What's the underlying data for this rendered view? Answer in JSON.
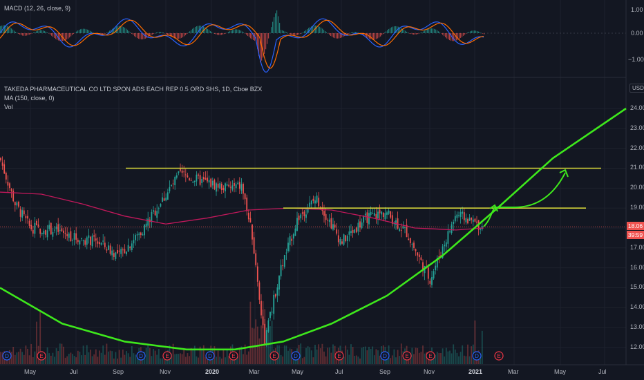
{
  "macd_pane": {
    "title": "MACD (12, 26, close, 9)",
    "ticks": [
      "1.00",
      "0.00",
      "−1.00"
    ]
  },
  "main_pane": {
    "symbol_title": "TAKEDA PHARMACEUTICAL CO LTD SPON ADS EACH REP 0.5 ORD SHS, 1D, Cboe BZX",
    "ma_label": "MA (150, close, 0)",
    "vol_label": "Vol",
    "currency": "USD",
    "last_price": "18.06",
    "countdown": "39:59"
  },
  "colors": {
    "background": "#131722",
    "up_candle": "#26a69a",
    "down_candle": "#ef5350",
    "moving_average": "#c2185b",
    "resistance_lines": "#d4d43a",
    "cup_curve": "#3ee81c",
    "macd_line": "#2962ff",
    "signal_line": "#ff6d00",
    "dividend_marker": "#2962ff",
    "earnings_marker": "#f23645"
  },
  "chart_data": {
    "type": "candlestick",
    "y_ticks": [
      "24.00",
      "23.00",
      "22.00",
      "21.00",
      "20.00",
      "19.00",
      "18.00",
      "17.00",
      "16.00",
      "15.00",
      "14.00",
      "13.00",
      "12.00"
    ],
    "ylim": [
      11.3,
      24.6
    ],
    "x_ticks": [
      "May",
      "Jul",
      "Sep",
      "Nov",
      "2020",
      "Mar",
      "May",
      "Jul",
      "Sep",
      "Nov",
      "2021",
      "Mar",
      "May",
      "Jul"
    ],
    "resistance_levels": [
      21.0,
      19.0
    ],
    "series": [
      {
        "name": "MA (150, close, 0)",
        "values": [
          19.8,
          19.7,
          19.2,
          18.6,
          18.2,
          18.5,
          18.9,
          19.0,
          18.9,
          18.5,
          18.0,
          17.9,
          18.0
        ]
      },
      {
        "name": "Cup curve",
        "values": [
          15.0,
          13.2,
          12.3,
          11.9,
          11.9,
          12.3,
          13.2,
          14.6,
          16.6,
          19.0,
          21.5,
          24.0
        ]
      }
    ],
    "price_path": [
      [
        "Mar",
        21.5
      ],
      [
        "Apr",
        19.2
      ],
      [
        "May",
        18.0
      ],
      [
        "Jun",
        17.9
      ],
      [
        "Jul",
        17.5
      ],
      [
        "Aug",
        17.3
      ],
      [
        "Sep",
        16.6
      ],
      [
        "Oct",
        17.9
      ],
      [
        "Nov",
        20.7
      ],
      [
        "Dec",
        20.3
      ],
      [
        "Jan",
        20.0
      ],
      [
        "Feb",
        20.1
      ],
      [
        "Mar",
        17.6
      ],
      [
        "Mar-low",
        12.3
      ],
      [
        "Apr",
        15.8
      ],
      [
        "May",
        18.5
      ],
      [
        "Jun",
        19.5
      ],
      [
        "Jul",
        17.3
      ],
      [
        "Aug",
        18.5
      ],
      [
        "Sep",
        18.8
      ],
      [
        "Oct",
        17.8
      ],
      [
        "Nov",
        15.4
      ],
      [
        "Dec",
        18.7
      ],
      [
        "Jan",
        18.06
      ]
    ],
    "event_markers": [
      "D",
      "E",
      "D",
      "E",
      "D",
      "E",
      "E",
      "D",
      "E",
      "D",
      "E",
      "E",
      "D",
      "E"
    ]
  }
}
